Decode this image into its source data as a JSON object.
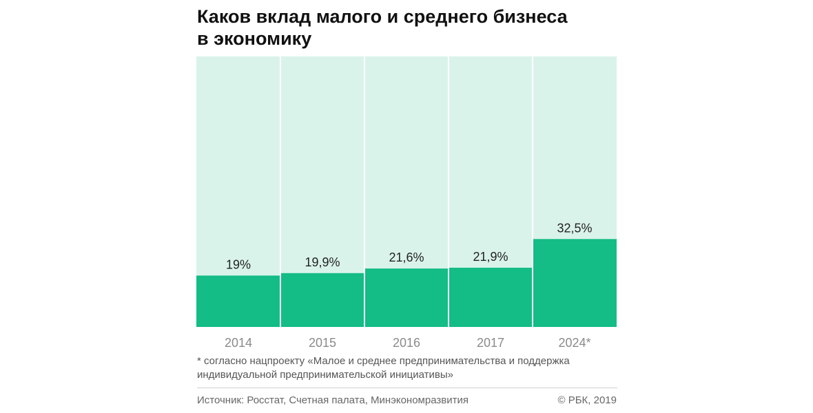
{
  "title": {
    "line1": "Каков вклад малого и среднего бизнеса",
    "line2": "в экономику"
  },
  "chart_data": {
    "type": "bar",
    "categories": [
      "2014",
      "2015",
      "2016",
      "2017",
      "2024*"
    ],
    "values": [
      19,
      19.9,
      21.6,
      21.9,
      32.5
    ],
    "labels": [
      "19%",
      "19,9%",
      "21,6%",
      "21,9%",
      "32,5%"
    ],
    "ylim": [
      0,
      100
    ],
    "grid": false,
    "colors": {
      "bar": "#14bc86",
      "background": "#daf3ea",
      "separator": "#ffffff"
    }
  },
  "footnote": {
    "line1": "* согласно нацпроекту  «Малое и среднее предпринимательства и поддержка",
    "line2": "индивидуальной предпринимательской инициативы»"
  },
  "source": "Источник: Росстат, Счетная палата, Минэкономразвития",
  "copyright": "© РБК, 2019"
}
